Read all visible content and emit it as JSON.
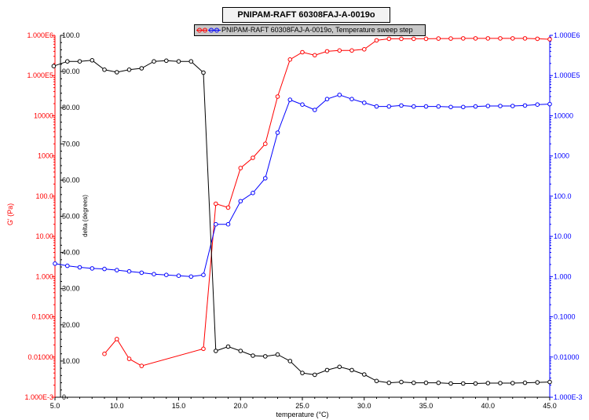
{
  "chart_data": {
    "type": "line",
    "title": "PNIPAM-RAFT 60308FAJ-A-0019o",
    "legend": {
      "label": "PNIPAM-RAFT 60308FAJ-A-0019o, Temperature sweep step",
      "placement": "top-center"
    },
    "xlabel": "temperature (°C)",
    "xlim": [
      5.0,
      45.0
    ],
    "x_ticks": [
      "5.0",
      "10.0",
      "15.0",
      "20.0",
      "25.0",
      "30.0",
      "35.0",
      "40.0",
      "45.0"
    ],
    "left_axis": {
      "label": "G' (Pa)",
      "color": "#ff0000",
      "scale": "log",
      "ylim": [
        0.001,
        1000000
      ],
      "ticks": [
        "1.000E-3",
        "0.01000",
        "0.1000",
        "1.000",
        "10.00",
        "100.0",
        "1000",
        "10000",
        "1.000E5",
        "1.000E6"
      ]
    },
    "inner_axis": {
      "label": "delta (degrees)",
      "color": "#000000",
      "scale": "linear",
      "ylim": [
        0,
        100
      ],
      "ticks": [
        "0",
        "10.00",
        "20.00",
        "30.00",
        "40.00",
        "50.00",
        "60.00",
        "70.00",
        "80.00",
        "90.00",
        "100.0"
      ]
    },
    "right_axis": {
      "label": "",
      "color": "#0000ff",
      "scale": "log",
      "ylim": [
        0.001,
        1000000
      ],
      "ticks": [
        "1.000E-3",
        "0.01000",
        "0.1000",
        "1.000",
        "10.00",
        "100.0",
        "1000",
        "10000",
        "1.000E5",
        "1.000E6"
      ]
    },
    "series": [
      {
        "axis": "left",
        "color": "#ff0000",
        "x": [
          9,
          10,
          11,
          12,
          17,
          18,
          19,
          20,
          21,
          22,
          23,
          24,
          25,
          26,
          27,
          28,
          29,
          30,
          31,
          32,
          33,
          34,
          35,
          36,
          37,
          38,
          39,
          40,
          41,
          42,
          43,
          44,
          45
        ],
        "y": [
          0.012,
          0.028,
          0.009,
          0.006,
          0.016,
          65,
          52,
          500,
          900,
          2000,
          30000,
          250000,
          380000,
          320000,
          400000,
          420000,
          420000,
          450000,
          750000,
          820000,
          820000,
          820000,
          820000,
          830000,
          830000,
          840000,
          840000,
          840000,
          840000,
          840000,
          840000,
          820000,
          800000
        ]
      },
      {
        "axis": "right",
        "color": "#0000ff",
        "x": [
          5,
          6,
          7,
          8,
          9,
          10,
          11,
          12,
          13,
          14,
          15,
          16,
          17,
          18,
          19,
          20,
          21,
          22,
          23,
          24,
          25,
          26,
          27,
          28,
          29,
          30,
          31,
          32,
          33,
          34,
          35,
          36,
          37,
          38,
          39,
          40,
          41,
          42,
          43,
          44,
          45
        ],
        "y": [
          2.1,
          1.85,
          1.7,
          1.6,
          1.55,
          1.45,
          1.35,
          1.25,
          1.15,
          1.1,
          1.05,
          1.0,
          1.1,
          20,
          20,
          75,
          120,
          280,
          3800,
          25000,
          19000,
          14000,
          26000,
          33000,
          26000,
          21000,
          17000,
          17000,
          18000,
          17000,
          17000,
          17000,
          16500,
          16500,
          17000,
          17500,
          17500,
          17500,
          18000,
          19000,
          19500
        ]
      },
      {
        "axis": "inner",
        "color": "#000000",
        "x": [
          4.9,
          6,
          7,
          8,
          9,
          10,
          11,
          12,
          13,
          14,
          15,
          16,
          17,
          18,
          19,
          20,
          21,
          22,
          23,
          24,
          25,
          26,
          27,
          28,
          29,
          30,
          31,
          32,
          33,
          34,
          35,
          36,
          37,
          38,
          39,
          40,
          41,
          42,
          43,
          44,
          45
        ],
        "y": [
          91.5,
          92.8,
          92.8,
          93.1,
          90.5,
          89.8,
          90.5,
          90.9,
          92.8,
          93.0,
          92.8,
          92.8,
          89.7,
          12.8,
          14.0,
          12.8,
          11.5,
          11.3,
          11.8,
          10.0,
          6.7,
          6.2,
          7.5,
          8.4,
          7.5,
          6.3,
          4.5,
          4.0,
          4.2,
          4.0,
          4.0,
          4.0,
          3.8,
          3.8,
          3.8,
          3.9,
          3.9,
          3.9,
          4.0,
          4.1,
          4.2
        ]
      }
    ]
  }
}
